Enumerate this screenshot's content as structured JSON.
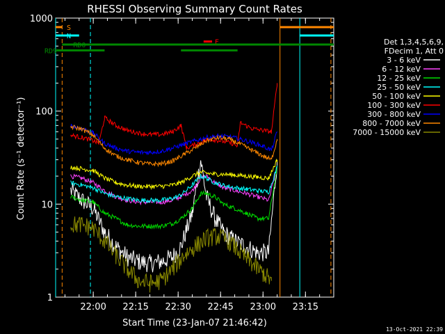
{
  "chart_data": {
    "type": "line",
    "title": "RHESSI Observing Summary Count Rates",
    "xlabel": "Start Time (23-Jan-07 21:46:42)",
    "ylabel": "Count Rate (s⁻¹ detector⁻¹)",
    "x_ticks": [
      "22:00",
      "22:15",
      "22:30",
      "22:45",
      "23:00",
      "23:15"
    ],
    "y_ticks": [
      "1",
      "10",
      "100",
      "1000"
    ],
    "y_scale": "log",
    "ylim": [
      1,
      1000
    ],
    "xlim": [
      "21:46:42",
      "23:25:00"
    ],
    "legend_header": [
      "Det 1,3,4,5,6,9,",
      "FDecim 1, Att 0"
    ],
    "series": [
      {
        "name": "3 - 6 keV",
        "color": "#ffffff",
        "points": [
          [
            "21:52",
            14
          ],
          [
            "21:56",
            11
          ],
          [
            "22:00",
            9
          ],
          [
            "22:04",
            5
          ],
          [
            "22:08",
            3.5
          ],
          [
            "22:12",
            2.7
          ],
          [
            "22:16",
            2.4
          ],
          [
            "22:20",
            2.3
          ],
          [
            "22:24",
            2.4
          ],
          [
            "22:28",
            2.7
          ],
          [
            "22:31",
            3.5
          ],
          [
            "22:35",
            8
          ],
          [
            "22:38",
            30
          ],
          [
            "22:40",
            12
          ],
          [
            "22:43",
            7
          ],
          [
            "22:46",
            5
          ],
          [
            "22:50",
            4
          ],
          [
            "22:54",
            3.5
          ],
          [
            "22:58",
            3
          ],
          [
            "23:02",
            3
          ],
          [
            "23:05",
            30
          ]
        ]
      },
      {
        "name": "6 - 12 keV",
        "color": "#ff44ff",
        "points": [
          [
            "21:52",
            20
          ],
          [
            "21:56",
            19
          ],
          [
            "22:00",
            17
          ],
          [
            "22:04",
            14
          ],
          [
            "22:08",
            12
          ],
          [
            "22:12",
            11
          ],
          [
            "22:16",
            10.5
          ],
          [
            "22:20",
            10.5
          ],
          [
            "22:24",
            10.5
          ],
          [
            "22:28",
            11
          ],
          [
            "22:31",
            12
          ],
          [
            "22:35",
            14
          ],
          [
            "22:38",
            19
          ],
          [
            "22:40",
            20
          ],
          [
            "22:43",
            17
          ],
          [
            "22:46",
            15
          ],
          [
            "22:50",
            14
          ],
          [
            "22:54",
            13
          ],
          [
            "22:58",
            12
          ],
          [
            "23:02",
            11
          ],
          [
            "23:05",
            25
          ]
        ]
      },
      {
        "name": "12 - 25 keV",
        "color": "#00dd00",
        "points": [
          [
            "21:52",
            12
          ],
          [
            "21:56",
            11
          ],
          [
            "22:00",
            10.5
          ],
          [
            "22:04",
            8
          ],
          [
            "22:08",
            7
          ],
          [
            "22:12",
            6
          ],
          [
            "22:16",
            5.8
          ],
          [
            "22:20",
            5.8
          ],
          [
            "22:24",
            5.8
          ],
          [
            "22:28",
            6.2
          ],
          [
            "22:31",
            7
          ],
          [
            "22:35",
            9
          ],
          [
            "22:38",
            13
          ],
          [
            "22:40",
            13
          ],
          [
            "22:43",
            12
          ],
          [
            "22:46",
            10
          ],
          [
            "22:50",
            9
          ],
          [
            "22:54",
            8
          ],
          [
            "22:58",
            7
          ],
          [
            "23:02",
            7
          ],
          [
            "23:05",
            25
          ]
        ]
      },
      {
        "name": "25 - 50 keV",
        "color": "#00ffff",
        "points": [
          [
            "21:52",
            17
          ],
          [
            "21:56",
            16
          ],
          [
            "22:00",
            15
          ],
          [
            "22:04",
            13
          ],
          [
            "22:08",
            12
          ],
          [
            "22:12",
            11.5
          ],
          [
            "22:16",
            11
          ],
          [
            "22:20",
            11
          ],
          [
            "22:24",
            11
          ],
          [
            "22:28",
            11.5
          ],
          [
            "22:31",
            12.5
          ],
          [
            "22:35",
            16
          ],
          [
            "22:38",
            20
          ],
          [
            "22:40",
            19
          ],
          [
            "22:43",
            17
          ],
          [
            "22:46",
            16
          ],
          [
            "22:50",
            15
          ],
          [
            "22:54",
            14.5
          ],
          [
            "22:58",
            14
          ],
          [
            "23:02",
            13.5
          ],
          [
            "23:05",
            25
          ]
        ]
      },
      {
        "name": "50 - 100 keV",
        "color": "#ffff00",
        "points": [
          [
            "21:52",
            25
          ],
          [
            "21:56",
            24
          ],
          [
            "22:00",
            23
          ],
          [
            "22:04",
            19
          ],
          [
            "22:08",
            17
          ],
          [
            "22:12",
            16
          ],
          [
            "22:16",
            15.5
          ],
          [
            "22:20",
            15.5
          ],
          [
            "22:24",
            15.5
          ],
          [
            "22:28",
            16
          ],
          [
            "22:31",
            17
          ],
          [
            "22:35",
            20
          ],
          [
            "22:38",
            22
          ],
          [
            "22:40",
            21.5
          ],
          [
            "22:43",
            21
          ],
          [
            "22:46",
            21
          ],
          [
            "22:50",
            20.5
          ],
          [
            "22:54",
            20
          ],
          [
            "22:58",
            19.5
          ],
          [
            "23:02",
            19
          ],
          [
            "23:05",
            30
          ]
        ]
      },
      {
        "name": "100 - 300 keV",
        "color": "#ff0000",
        "points": [
          [
            "21:52",
            55
          ],
          [
            "21:56",
            52
          ],
          [
            "22:00",
            48
          ],
          [
            "22:02",
            45
          ],
          [
            "22:04",
            85
          ],
          [
            "22:08",
            70
          ],
          [
            "22:12",
            62
          ],
          [
            "22:16",
            58
          ],
          [
            "22:20",
            56
          ],
          [
            "22:24",
            56
          ],
          [
            "22:28",
            60
          ],
          [
            "22:31",
            70
          ],
          [
            "22:33",
            40
          ],
          [
            "22:37",
            45
          ],
          [
            "22:41",
            50
          ],
          [
            "22:45",
            48
          ],
          [
            "22:49",
            45
          ],
          [
            "22:51",
            42
          ],
          [
            "22:52",
            75
          ],
          [
            "22:56",
            65
          ],
          [
            "23:00",
            62
          ],
          [
            "23:03",
            60
          ],
          [
            "23:05",
            200
          ]
        ]
      },
      {
        "name": "300 - 800 keV",
        "color": "#0000ff",
        "points": [
          [
            "21:52",
            70
          ],
          [
            "21:56",
            65
          ],
          [
            "22:00",
            58
          ],
          [
            "22:04",
            45
          ],
          [
            "22:08",
            40
          ],
          [
            "22:12",
            37
          ],
          [
            "22:16",
            36
          ],
          [
            "22:20",
            36
          ],
          [
            "22:24",
            37
          ],
          [
            "22:28",
            40
          ],
          [
            "22:32",
            44
          ],
          [
            "22:36",
            48
          ],
          [
            "22:40",
            52
          ],
          [
            "22:44",
            54
          ],
          [
            "22:48",
            53
          ],
          [
            "22:52",
            50
          ],
          [
            "22:56",
            46
          ],
          [
            "23:00",
            42
          ],
          [
            "23:03",
            38
          ],
          [
            "23:05",
            60
          ]
        ]
      },
      {
        "name": "800 - 7000 keV",
        "color": "#ff8800",
        "points": [
          [
            "21:52",
            68
          ],
          [
            "21:56",
            64
          ],
          [
            "22:00",
            55
          ],
          [
            "22:04",
            40
          ],
          [
            "22:08",
            33
          ],
          [
            "22:12",
            30
          ],
          [
            "22:16",
            28
          ],
          [
            "22:20",
            27
          ],
          [
            "22:24",
            27
          ],
          [
            "22:28",
            29
          ],
          [
            "22:32",
            34
          ],
          [
            "22:36",
            40
          ],
          [
            "22:40",
            48
          ],
          [
            "22:44",
            52
          ],
          [
            "22:48",
            50
          ],
          [
            "22:52",
            44
          ],
          [
            "22:56",
            38
          ],
          [
            "23:00",
            33
          ],
          [
            "23:03",
            30
          ],
          [
            "23:05",
            50
          ]
        ]
      },
      {
        "name": "7000 - 15000 keV",
        "color": "#888800",
        "points": [
          [
            "21:52",
            6
          ],
          [
            "21:56",
            6
          ],
          [
            "22:00",
            5.5
          ],
          [
            "22:04",
            4
          ],
          [
            "22:08",
            2.8
          ],
          [
            "22:12",
            2
          ],
          [
            "22:16",
            1.5
          ],
          [
            "22:20",
            1.4
          ],
          [
            "22:24",
            1.5
          ],
          [
            "22:28",
            2
          ],
          [
            "22:32",
            2.8
          ],
          [
            "22:36",
            3.5
          ],
          [
            "22:40",
            4.3
          ],
          [
            "22:44",
            4.5
          ],
          [
            "22:48",
            4
          ],
          [
            "22:52",
            3
          ],
          [
            "22:56",
            2.3
          ],
          [
            "23:00",
            1.8
          ],
          [
            "23:03",
            1.5
          ]
        ]
      }
    ],
    "state_bars": [
      {
        "label": "S",
        "color": "#ff8800",
        "y": 800,
        "segments": [
          [
            "21:46:42",
            "21:49"
          ],
          [
            "23:06",
            "23:25"
          ]
        ]
      },
      {
        "label": "N",
        "color": "#00ffff",
        "y": 650,
        "segments": [
          [
            "21:46:42",
            "21:55"
          ],
          [
            "23:13",
            "23:25"
          ]
        ]
      },
      {
        "label": "F",
        "color": "#ff0000",
        "y": 560,
        "segments": [
          [
            "22:39",
            "22:42"
          ]
        ]
      },
      {
        "label": "RD0",
        "color": "#008800",
        "y": 520,
        "segments": [
          [
            "21:49",
            "23:25"
          ]
        ]
      },
      {
        "label": "RD9",
        "color": "#008800",
        "y": 450,
        "segments": [
          [
            "21:46:42",
            "22:04"
          ],
          [
            "22:31",
            "22:51"
          ]
        ]
      }
    ],
    "vertical_lines": [
      {
        "t": "21:46:42",
        "color": "#00ffff",
        "style": "solid"
      },
      {
        "t": "21:49",
        "color": "#ff8800",
        "style": "dashed"
      },
      {
        "t": "21:59",
        "color": "#00ffff",
        "style": "dashed"
      },
      {
        "t": "23:06",
        "color": "#ff8800",
        "style": "solid"
      },
      {
        "t": "23:13",
        "color": "#00ffff",
        "style": "solid"
      },
      {
        "t": "23:24",
        "color": "#ff8800",
        "style": "dashed"
      }
    ],
    "grid": false,
    "legend_position": "right"
  },
  "footer": {
    "timestamp": "13-Oct-2021 22:39"
  }
}
